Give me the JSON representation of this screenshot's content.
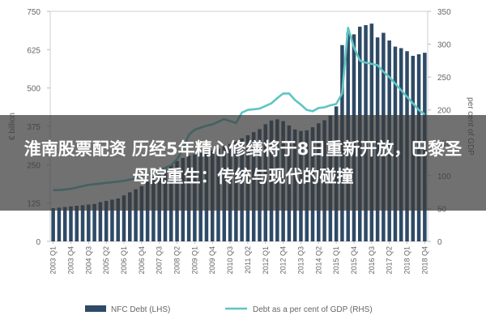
{
  "overlay": {
    "title": "淮南股票配资 历经5年精心修缮将于8日重新开放，巴黎圣母院重生：传统与现代的碰撞"
  },
  "colors": {
    "bar": "#2e4a66",
    "line": "#5ec5c4",
    "axis_text": "#666666",
    "grid": "#dddddd"
  },
  "chart_data": {
    "type": "bar",
    "left_axis": {
      "label": "€ billion",
      "range": [
        0,
        750
      ],
      "ticks": [
        "0",
        "125",
        "250",
        "375",
        "500",
        "625",
        "750"
      ]
    },
    "right_axis": {
      "label": "per cent of GDP",
      "range": [
        0,
        350
      ],
      "ticks": [
        "0",
        "50",
        "100",
        "150",
        "200",
        "250",
        "300",
        "350"
      ]
    },
    "x_tick_labels": [
      "2003 Q1",
      "2003 Q4",
      "2004 Q3",
      "2005 Q2",
      "2006 Q1",
      "2006 Q4",
      "2007 Q3",
      "2008 Q2",
      "2009 Q1",
      "2009 Q4",
      "2010 Q3",
      "2011 Q2",
      "2012 Q1",
      "2012 Q4",
      "2013 Q3",
      "2014 Q2",
      "2015 Q1",
      "2015 Q4",
      "2016 Q3",
      "2017 Q2",
      "2018 Q1",
      "2018 Q4"
    ],
    "categories": [
      "2003 Q1",
      "2003 Q2",
      "2003 Q3",
      "2003 Q4",
      "2004 Q1",
      "2004 Q2",
      "2004 Q3",
      "2004 Q4",
      "2005 Q1",
      "2005 Q2",
      "2005 Q3",
      "2005 Q4",
      "2006 Q1",
      "2006 Q2",
      "2006 Q3",
      "2006 Q4",
      "2007 Q1",
      "2007 Q2",
      "2007 Q3",
      "2007 Q4",
      "2008 Q1",
      "2008 Q2",
      "2008 Q3",
      "2008 Q4",
      "2009 Q1",
      "2009 Q2",
      "2009 Q3",
      "2009 Q4",
      "2010 Q1",
      "2010 Q2",
      "2010 Q3",
      "2010 Q4",
      "2011 Q1",
      "2011 Q2",
      "2011 Q3",
      "2011 Q4",
      "2012 Q1",
      "2012 Q2",
      "2012 Q3",
      "2012 Q4",
      "2013 Q1",
      "2013 Q2",
      "2013 Q3",
      "2013 Q4",
      "2014 Q1",
      "2014 Q2",
      "2014 Q3",
      "2014 Q4",
      "2015 Q1",
      "2015 Q2",
      "2015 Q3",
      "2015 Q4",
      "2016 Q1",
      "2016 Q2",
      "2016 Q3",
      "2016 Q4",
      "2017 Q1",
      "2017 Q2",
      "2017 Q3",
      "2017 Q4",
      "2018 Q1",
      "2018 Q2",
      "2018 Q3",
      "2018 Q4"
    ],
    "series": [
      {
        "name": "NFC Debt (LHS)",
        "type": "bar",
        "axis": "left",
        "values": [
          108,
          110,
          112,
          114,
          116,
          118,
          120,
          122,
          128,
          132,
          136,
          140,
          150,
          160,
          170,
          180,
          195,
          210,
          222,
          236,
          250,
          262,
          272,
          280,
          284,
          288,
          292,
          296,
          302,
          310,
          318,
          326,
          336,
          346,
          356,
          366,
          382,
          394,
          398,
          392,
          378,
          365,
          360,
          362,
          372,
          385,
          395,
          410,
          440,
          640,
          680,
          675,
          700,
          705,
          710,
          665,
          680,
          655,
          635,
          630,
          620,
          605,
          610,
          615
        ]
      },
      {
        "name": "Debt as a per cent of GDP (RHS)",
        "type": "line",
        "axis": "right",
        "values": [
          78,
          78,
          79,
          80,
          82,
          84,
          86,
          87,
          88,
          89,
          90,
          91,
          92,
          94,
          96,
          100,
          102,
          104,
          108,
          112,
          116,
          125,
          140,
          162,
          170,
          173,
          176,
          178,
          182,
          186,
          183,
          180,
          196,
          200,
          201,
          202,
          206,
          210,
          218,
          225,
          225,
          215,
          208,
          200,
          198,
          203,
          204,
          207,
          209,
          225,
          325,
          295,
          275,
          272,
          270,
          268,
          258,
          250,
          240,
          230,
          220,
          210,
          200,
          193
        ]
      }
    ],
    "legend": [
      {
        "label": "NFC Debt (LHS)",
        "kind": "bar"
      },
      {
        "label": "Debt as a per cent of GDP (RHS)",
        "kind": "line"
      }
    ],
    "legend_position": "bottom",
    "grid": false
  }
}
